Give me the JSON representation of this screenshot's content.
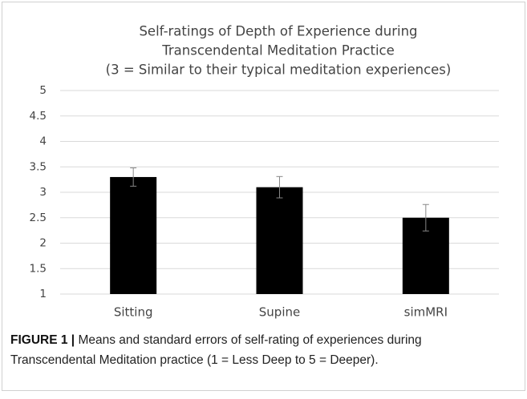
{
  "chart_data": {
    "type": "bar",
    "title": [
      "Self-ratings of Depth of Experience during",
      "Transcendental Meditation Practice",
      "(3 = Similar to their typical meditation experiences)"
    ],
    "categories": [
      "Sitting",
      "Supine",
      "simMRI"
    ],
    "values": [
      3.3,
      3.1,
      2.5
    ],
    "errors": [
      0.18,
      0.21,
      0.26
    ],
    "color": "#000000",
    "ylim": [
      1,
      5
    ],
    "yticks": [
      1,
      1.5,
      2,
      2.5,
      3,
      3.5,
      4,
      4.5,
      5
    ],
    "grid": true
  },
  "caption": {
    "label": "FIGURE 1 |",
    "text": "Means and standard errors of self-rating of experiences during Transcendental Meditation practice (1 = Less Deep to 5 = Deeper)."
  }
}
